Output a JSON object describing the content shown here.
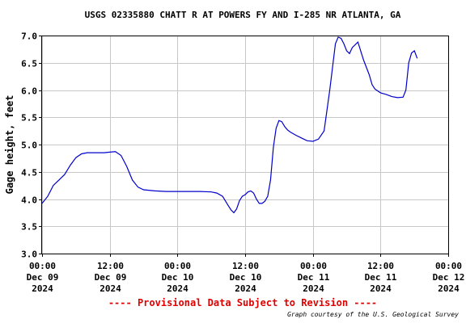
{
  "chart_data": {
    "type": "line",
    "title": "USGS 02335880 CHATT R AT POWERS FY AND I-285 NR ATLANTA, GA",
    "ylabel": "Gage height, feet",
    "xlabel": "",
    "ylim": [
      3.0,
      7.0
    ],
    "xlim": [
      "2024-12-09 00:00",
      "2024-12-12 00:00"
    ],
    "grid": true,
    "y_ticks": [
      "3.0",
      "3.5",
      "4.0",
      "4.5",
      "5.0",
      "5.5",
      "6.0",
      "6.5",
      "7.0"
    ],
    "x_ticks": [
      {
        "time": "00:00",
        "day": "Dec 09",
        "year": "2024"
      },
      {
        "time": "12:00",
        "day": "Dec 09",
        "year": "2024"
      },
      {
        "time": "00:00",
        "day": "Dec 10",
        "year": "2024"
      },
      {
        "time": "12:00",
        "day": "Dec 10",
        "year": "2024"
      },
      {
        "time": "00:00",
        "day": "Dec 11",
        "year": "2024"
      },
      {
        "time": "12:00",
        "day": "Dec 11",
        "year": "2024"
      },
      {
        "time": "00:00",
        "day": "Dec 12",
        "year": "2024"
      }
    ],
    "series": [
      {
        "color": "#0000cc",
        "x": [
          "2024-12-09 00:00",
          "2024-12-09 01:00",
          "2024-12-09 02:00",
          "2024-12-09 03:00",
          "2024-12-09 04:00",
          "2024-12-09 05:00",
          "2024-12-09 06:00",
          "2024-12-09 07:00",
          "2024-12-09 08:00",
          "2024-12-09 09:00",
          "2024-12-09 10:00",
          "2024-12-09 11:00",
          "2024-12-09 12:00",
          "2024-12-09 13:00",
          "2024-12-09 14:00",
          "2024-12-09 15:00",
          "2024-12-09 16:00",
          "2024-12-09 17:00",
          "2024-12-09 18:00",
          "2024-12-09 20:00",
          "2024-12-09 22:00",
          "2024-12-10 00:00",
          "2024-12-10 02:00",
          "2024-12-10 04:00",
          "2024-12-10 06:00",
          "2024-12-10 07:00",
          "2024-12-10 08:00",
          "2024-12-10 09:00",
          "2024-12-10 09:30",
          "2024-12-10 10:00",
          "2024-12-10 10:30",
          "2024-12-10 11:00",
          "2024-12-10 11:30",
          "2024-12-10 12:00",
          "2024-12-10 12:30",
          "2024-12-10 13:00",
          "2024-12-10 13:30",
          "2024-12-10 14:00",
          "2024-12-10 14:30",
          "2024-12-10 15:00",
          "2024-12-10 15:30",
          "2024-12-10 16:00",
          "2024-12-10 16:30",
          "2024-12-10 17:00",
          "2024-12-10 17:30",
          "2024-12-10 18:00",
          "2024-12-10 18:30",
          "2024-12-10 19:00",
          "2024-12-10 19:30",
          "2024-12-10 20:00",
          "2024-12-10 21:00",
          "2024-12-10 22:00",
          "2024-12-10 23:00",
          "2024-12-11 00:00",
          "2024-12-11 01:00",
          "2024-12-11 02:00",
          "2024-12-11 03:00",
          "2024-12-11 04:00",
          "2024-12-11 04:30",
          "2024-12-11 05:00",
          "2024-12-11 05:30",
          "2024-12-11 06:00",
          "2024-12-11 06:30",
          "2024-12-11 07:00",
          "2024-12-11 08:00",
          "2024-12-11 09:00",
          "2024-12-11 10:00",
          "2024-12-11 10:30",
          "2024-12-11 11:00",
          "2024-12-11 12:00",
          "2024-12-11 13:00",
          "2024-12-11 14:00",
          "2024-12-11 15:00",
          "2024-12-11 16:00",
          "2024-12-11 16:30",
          "2024-12-11 17:00",
          "2024-12-11 17:30",
          "2024-12-11 18:00",
          "2024-12-11 18:30"
        ],
        "values": [
          3.92,
          4.05,
          4.25,
          4.35,
          4.45,
          4.62,
          4.76,
          4.83,
          4.85,
          4.85,
          4.85,
          4.85,
          4.86,
          4.87,
          4.8,
          4.6,
          4.35,
          4.22,
          4.17,
          4.15,
          4.14,
          4.14,
          4.14,
          4.14,
          4.13,
          4.11,
          4.05,
          3.88,
          3.8,
          3.75,
          3.82,
          3.97,
          4.05,
          4.08,
          4.13,
          4.15,
          4.11,
          4.0,
          3.92,
          3.92,
          3.96,
          4.05,
          4.35,
          4.95,
          5.3,
          5.44,
          5.42,
          5.33,
          5.27,
          5.23,
          5.17,
          5.12,
          5.07,
          5.06,
          5.1,
          5.25,
          6.0,
          6.85,
          6.97,
          6.95,
          6.85,
          6.72,
          6.67,
          6.78,
          6.88,
          6.55,
          6.28,
          6.1,
          6.02,
          5.95,
          5.92,
          5.88,
          5.86,
          5.87,
          6.0,
          6.5,
          6.68,
          6.72,
          6.58
        ]
      }
    ],
    "provisional_notice": "---- Provisional Data Subject to Revision ----",
    "credit": "Graph courtesy of the U.S. Geological Survey"
  }
}
